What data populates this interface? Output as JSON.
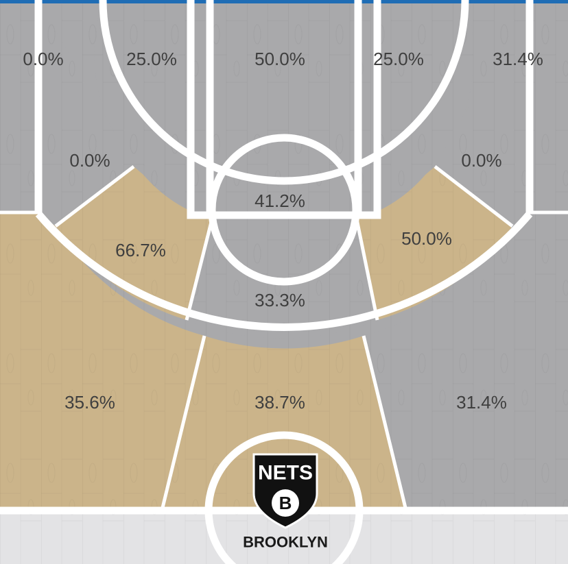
{
  "chart_data": {
    "type": "heatmap",
    "title": "",
    "zones": [
      {
        "id": "left-corner-three",
        "value": 0.0,
        "label": "0.0%"
      },
      {
        "id": "left-long-mid-upper",
        "value": 25.0,
        "label": "25.0%"
      },
      {
        "id": "paint-top",
        "value": 50.0,
        "label": "50.0%"
      },
      {
        "id": "right-long-mid-upper",
        "value": 25.0,
        "label": "25.0%"
      },
      {
        "id": "right-corner-three",
        "value": 31.4,
        "label": "31.4%"
      },
      {
        "id": "left-baseline-mid",
        "value": 0.0,
        "label": "0.0%"
      },
      {
        "id": "right-baseline-mid",
        "value": 0.0,
        "label": "0.0%"
      },
      {
        "id": "restricted-area",
        "value": 41.2,
        "label": "41.2%"
      },
      {
        "id": "left-wing-mid",
        "value": 66.7,
        "label": "66.7%"
      },
      {
        "id": "right-wing-mid",
        "value": 50.0,
        "label": "50.0%"
      },
      {
        "id": "top-key-mid",
        "value": 33.3,
        "label": "33.3%"
      },
      {
        "id": "left-wing-three",
        "value": 35.6,
        "label": "35.6%"
      },
      {
        "id": "top-three",
        "value": 38.7,
        "label": "38.7%"
      },
      {
        "id": "right-wing-three",
        "value": 31.4,
        "label": "31.4%"
      }
    ],
    "colors": {
      "hot": "#cbb48a",
      "cold": "#a9a9ab",
      "floor": "#e3e3e5",
      "lines": "#ffffff",
      "accent": "#1f6db5"
    }
  },
  "logo": {
    "name": "NETS",
    "letter": "B",
    "city": "BROOKLYN"
  }
}
